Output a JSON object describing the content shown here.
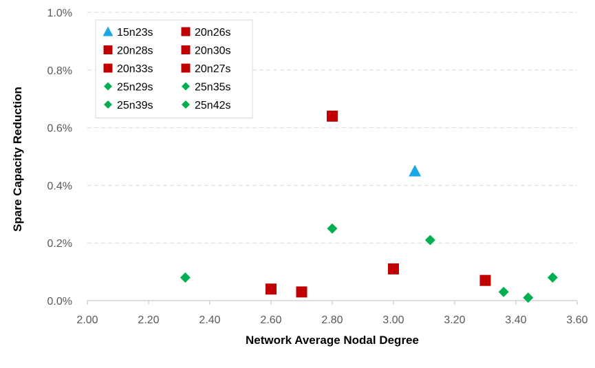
{
  "chart_data": {
    "type": "scatter",
    "title": "",
    "xlabel": "Network Average Nodal Degree",
    "ylabel": "Spare Capacity Reduction",
    "xlim": [
      2.0,
      3.6
    ],
    "ylim": [
      0.0,
      1.0
    ],
    "x_ticks": [
      "2.00",
      "2.20",
      "2.40",
      "2.60",
      "2.80",
      "3.00",
      "3.20",
      "3.40",
      "3.60"
    ],
    "y_ticks": [
      "0.0%",
      "0.2%",
      "0.4%",
      "0.6%",
      "0.8%",
      "1.0%"
    ],
    "y_unit": "%",
    "grid": "horizontal dashed",
    "legend_position": "top-left",
    "series": [
      {
        "name": "15n23s",
        "marker": "triangle",
        "color": "#1aa7e6",
        "points": [
          {
            "x": 3.07,
            "y": 0.45
          }
        ]
      },
      {
        "name": "20n26s",
        "marker": "square",
        "color": "#c00000",
        "points": [
          {
            "x": 2.6,
            "y": 0.04
          }
        ]
      },
      {
        "name": "20n28s",
        "marker": "square",
        "color": "#c00000",
        "points": [
          {
            "x": 2.8,
            "y": 0.64
          }
        ]
      },
      {
        "name": "20n30s",
        "marker": "square",
        "color": "#c00000",
        "points": [
          {
            "x": 3.0,
            "y": 0.11
          }
        ]
      },
      {
        "name": "20n33s",
        "marker": "square",
        "color": "#c00000",
        "points": [
          {
            "x": 3.3,
            "y": 0.07
          }
        ]
      },
      {
        "name": "20n27s",
        "marker": "square",
        "color": "#c00000",
        "points": [
          {
            "x": 2.7,
            "y": 0.03
          }
        ]
      },
      {
        "name": "25n29s",
        "marker": "diamond",
        "color": "#00b050",
        "points": [
          {
            "x": 2.32,
            "y": 0.08
          }
        ]
      },
      {
        "name": "25n35s",
        "marker": "diamond",
        "color": "#00b050",
        "points": [
          {
            "x": 2.8,
            "y": 0.25
          }
        ]
      },
      {
        "name": "25n39s",
        "marker": "diamond",
        "color": "#00b050",
        "points": [
          {
            "x": 3.12,
            "y": 0.21
          }
        ]
      },
      {
        "name": "25n42s",
        "marker": "diamond",
        "color": "#00b050",
        "points": [
          {
            "x": 3.36,
            "y": 0.03
          },
          {
            "x": 3.44,
            "y": 0.01
          },
          {
            "x": 3.52,
            "y": 0.08
          }
        ]
      }
    ]
  }
}
